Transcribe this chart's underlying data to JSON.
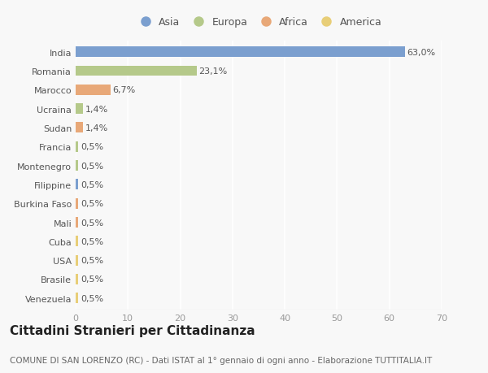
{
  "countries": [
    "India",
    "Romania",
    "Marocco",
    "Ucraina",
    "Sudan",
    "Francia",
    "Montenegro",
    "Filippine",
    "Burkina Faso",
    "Mali",
    "Cuba",
    "USA",
    "Brasile",
    "Venezuela"
  ],
  "values": [
    63.0,
    23.1,
    6.7,
    1.4,
    1.4,
    0.5,
    0.5,
    0.5,
    0.5,
    0.5,
    0.5,
    0.5,
    0.5,
    0.5
  ],
  "labels": [
    "63,0%",
    "23,1%",
    "6,7%",
    "1,4%",
    "1,4%",
    "0,5%",
    "0,5%",
    "0,5%",
    "0,5%",
    "0,5%",
    "0,5%",
    "0,5%",
    "0,5%",
    "0,5%"
  ],
  "continents": [
    "Asia",
    "Europa",
    "Africa",
    "Europa",
    "Africa",
    "Europa",
    "Europa",
    "Asia",
    "Africa",
    "Africa",
    "America",
    "America",
    "America",
    "America"
  ],
  "continent_colors": {
    "Asia": "#7b9fcf",
    "Europa": "#b5c98a",
    "Africa": "#e8a878",
    "America": "#e8ce78"
  },
  "legend_order": [
    "Asia",
    "Europa",
    "Africa",
    "America"
  ],
  "legend_colors": [
    "#7b9fcf",
    "#b5c98a",
    "#e8a878",
    "#e8ce78"
  ],
  "title": "Cittadini Stranieri per Cittadinanza",
  "subtitle": "COMUNE DI SAN LORENZO (RC) - Dati ISTAT al 1° gennaio di ogni anno - Elaborazione TUTTITALIA.IT",
  "xlim": [
    0,
    70
  ],
  "xticks": [
    0,
    10,
    20,
    30,
    40,
    50,
    60,
    70
  ],
  "background_color": "#f8f8f8",
  "bar_height": 0.55,
  "title_fontsize": 11,
  "subtitle_fontsize": 7.5,
  "label_fontsize": 8,
  "tick_fontsize": 8,
  "legend_fontsize": 9
}
